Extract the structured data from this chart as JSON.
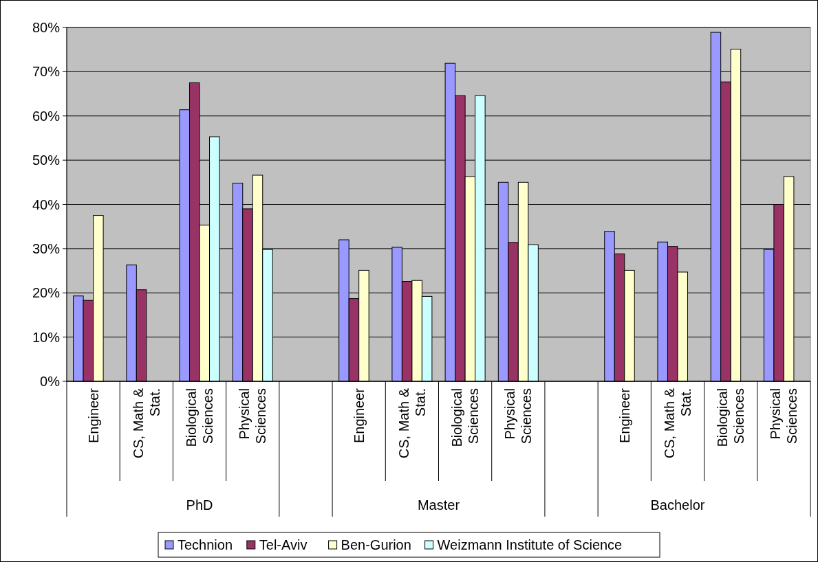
{
  "chart_data": {
    "type": "bar",
    "categories": [
      "Engineer",
      "CS, Math & Stat.",
      "Biological Sciences",
      "Physical Sciences",
      null,
      "Engineer",
      "CS, Math & Stat.",
      "Biological Sciences",
      "Physical Sciences",
      null,
      "Engineer",
      "CS, Math & Stat.",
      "Biological Sciences",
      "Physical Sciences"
    ],
    "series": [
      {
        "name": "Technion",
        "color": "#9999ff",
        "values": [
          19.3,
          26.3,
          61.4,
          44.8,
          null,
          32.0,
          30.3,
          71.9,
          45.0,
          null,
          33.9,
          31.5,
          78.9,
          29.8
        ]
      },
      {
        "name": "Tel-Aviv",
        "color": "#993366",
        "values": [
          18.3,
          20.7,
          67.5,
          39.0,
          null,
          18.7,
          22.6,
          64.6,
          31.4,
          null,
          28.8,
          30.5,
          67.7,
          40.0
        ]
      },
      {
        "name": "Ben-Gurion",
        "color": "#ffffcc",
        "values": [
          37.5,
          null,
          35.3,
          46.6,
          null,
          25.1,
          22.8,
          46.3,
          45.0,
          null,
          25.1,
          24.7,
          75.1,
          46.3
        ]
      },
      {
        "name": "Weizmann Institute of Science",
        "color": "#ccffff",
        "values": [
          null,
          null,
          55.3,
          29.8,
          null,
          null,
          19.2,
          64.6,
          30.9,
          null,
          null,
          null,
          null,
          null
        ]
      }
    ],
    "annotations": [
      "PhD",
      "Master",
      "Bachelor"
    ],
    "ylim": [
      0,
      80
    ],
    "yticks": [
      {
        "value": 0,
        "label": "0%"
      },
      {
        "value": 10,
        "label": "10%"
      },
      {
        "value": 20,
        "label": "20%"
      },
      {
        "value": 30,
        "label": "30%"
      },
      {
        "value": 40,
        "label": "40%"
      },
      {
        "value": 50,
        "label": "50%"
      },
      {
        "value": 60,
        "label": "60%"
      },
      {
        "value": 70,
        "label": "70%"
      },
      {
        "value": 80,
        "label": "80%"
      }
    ],
    "grid": "y",
    "legend": "bottom"
  }
}
